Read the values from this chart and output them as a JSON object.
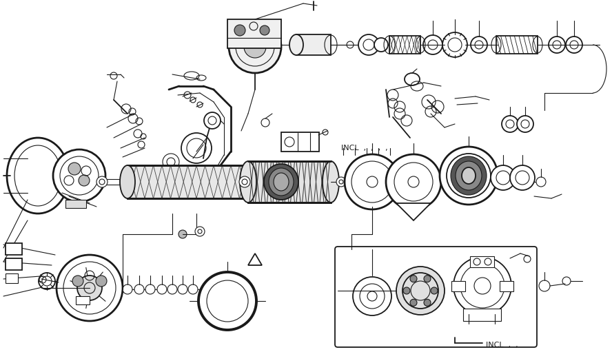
{
  "background_color": "#ffffff",
  "line_color": "#1a1a1a",
  "incl_text_1": "INCL  ,  ,  ,  ,",
  "incl_text_2": "INCL  ,  ,",
  "fig_width": 8.88,
  "fig_height": 5.27,
  "dpi": 100
}
